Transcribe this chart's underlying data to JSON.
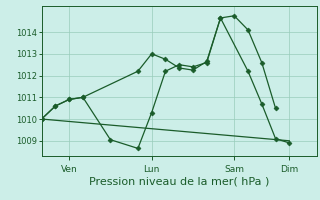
{
  "bg_color": "#cceee8",
  "grid_color": "#99ccbb",
  "line_color": "#1a5c2a",
  "marker_color": "#1a5c2a",
  "xlabel": "Pression niveau de la mer( hPa )",
  "xlabel_fontsize": 8,
  "yticks": [
    1009,
    1010,
    1011,
    1012,
    1013,
    1014
  ],
  "ylim": [
    1008.3,
    1015.2
  ],
  "xtick_labels": [
    "Ven",
    "Lun",
    "Sam",
    "Dim"
  ],
  "xtick_positions": [
    12,
    48,
    84,
    108
  ],
  "xlim": [
    0,
    120
  ],
  "series1_x": [
    0,
    6,
    12,
    18,
    42,
    48,
    54,
    60,
    66,
    72,
    78,
    84,
    90,
    96,
    102
  ],
  "series1_y": [
    1010.0,
    1010.6,
    1010.9,
    1011.0,
    1012.2,
    1013.0,
    1012.75,
    1012.35,
    1012.25,
    1012.65,
    1014.65,
    1014.75,
    1014.1,
    1012.6,
    1010.5
  ],
  "series2_x": [
    0,
    6,
    12,
    18,
    30,
    42,
    48,
    54,
    60,
    66,
    72,
    78,
    90,
    96,
    102,
    108
  ],
  "series2_y": [
    1010.0,
    1010.6,
    1010.9,
    1011.0,
    1009.05,
    1008.65,
    1010.3,
    1012.2,
    1012.5,
    1012.4,
    1012.6,
    1014.65,
    1012.2,
    1010.7,
    1009.1,
    1008.9
  ],
  "series3_x": [
    0,
    108
  ],
  "series3_y": [
    1010.0,
    1009.0
  ],
  "ytick_labelsize": 6,
  "xtick_labelsize": 6.5
}
